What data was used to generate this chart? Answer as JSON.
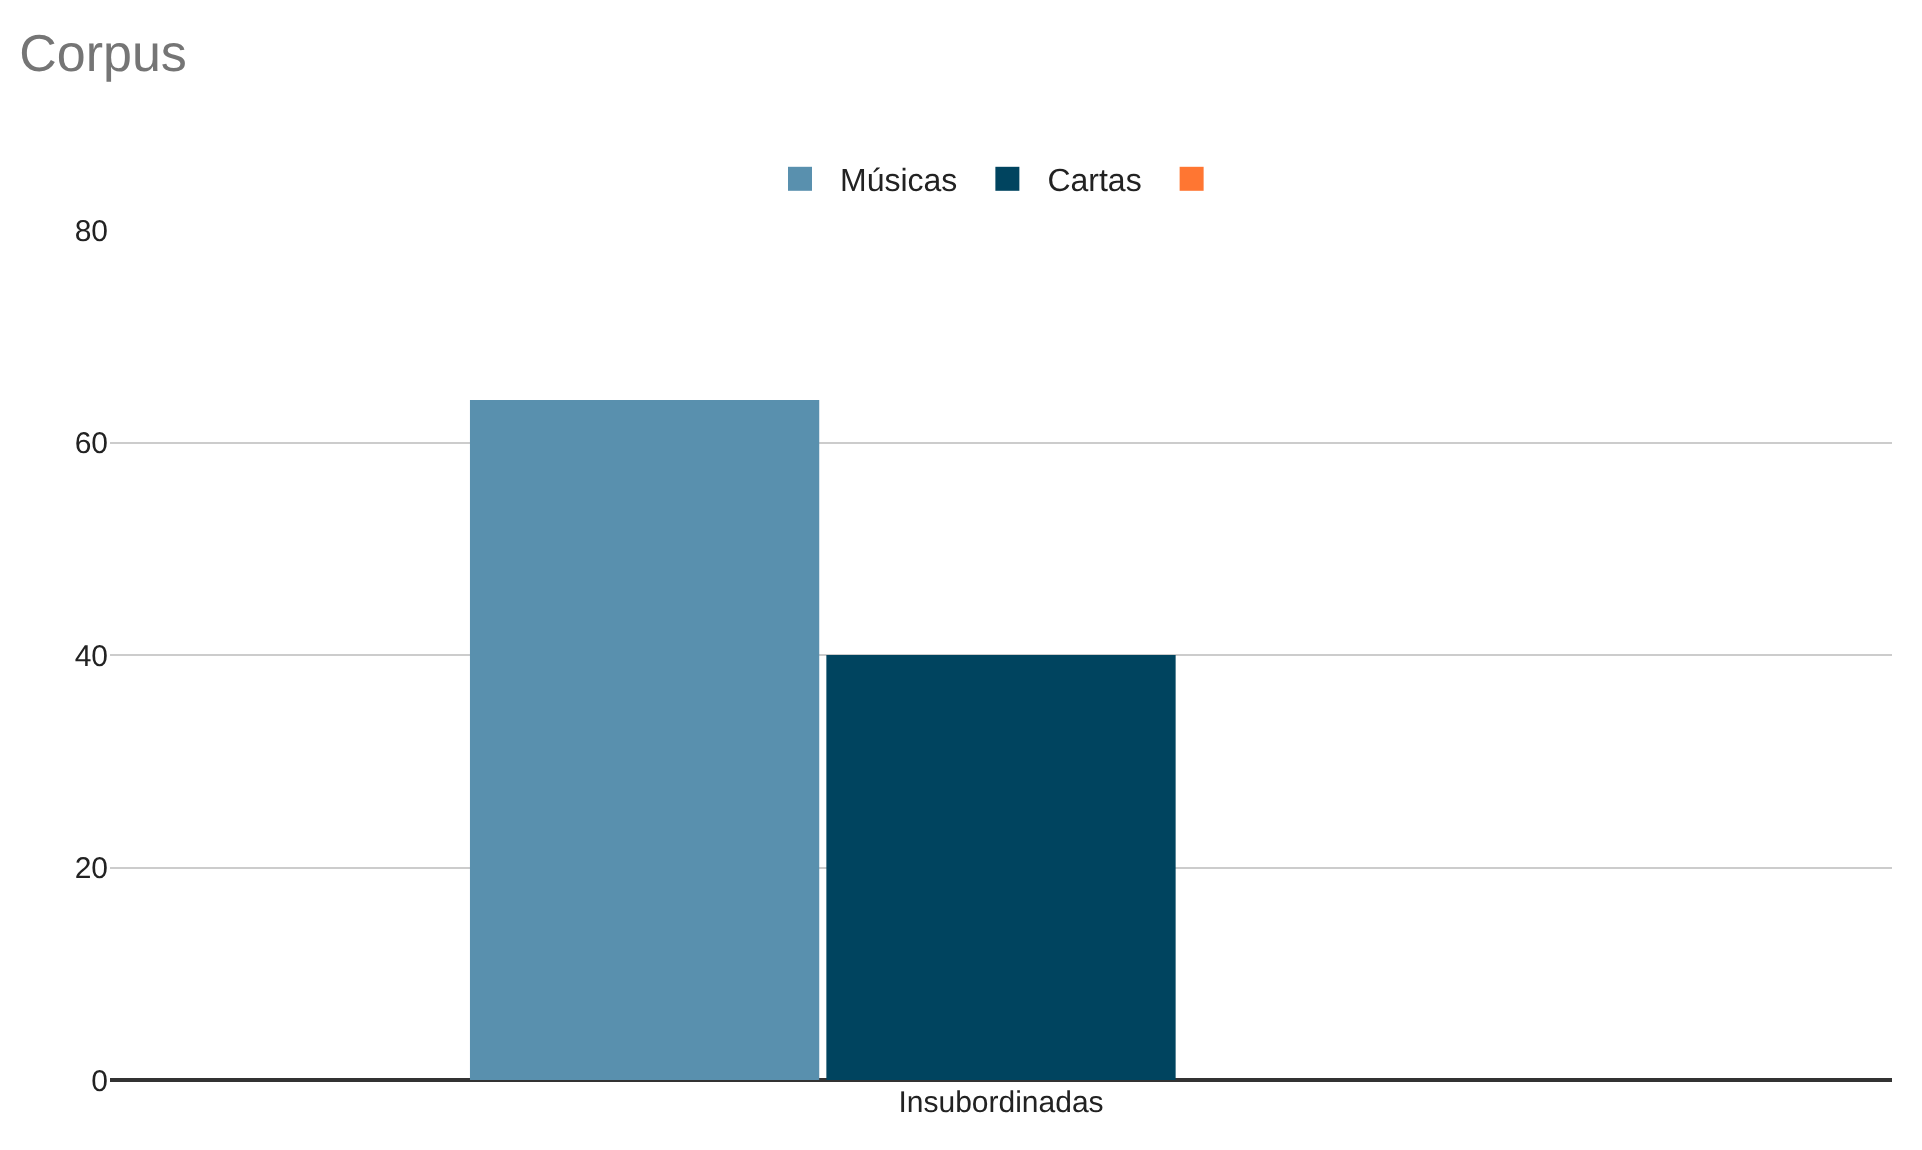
{
  "chart_data": {
    "type": "bar",
    "title": "Corpus",
    "categories": [
      "Insubordinadas"
    ],
    "series": [
      {
        "name": "Músicas",
        "color": "#5990ae",
        "values": [
          64
        ]
      },
      {
        "name": "Cartas",
        "color": "#00445f",
        "values": [
          40
        ]
      },
      {
        "color": "#ff7632",
        "values": [
          null
        ]
      }
    ],
    "ylim": [
      0,
      80
    ],
    "yticks": [
      0,
      20,
      40,
      60,
      80
    ],
    "grid": "y",
    "legend": "top"
  }
}
